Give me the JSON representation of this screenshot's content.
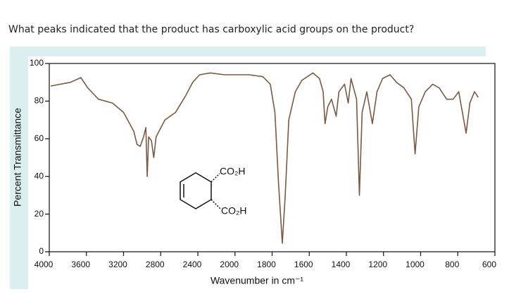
{
  "question": "What peaks indicated that the product has carboxylic acid groups on the product?",
  "chart_data": {
    "type": "line",
    "xlabel": "Wavenumber in cm⁻¹",
    "ylabel": "Percent Transmittance",
    "structure_labels": [
      "CO₂H",
      "CO₂H"
    ],
    "color": "#7a5a44",
    "xlim": [
      4000,
      600
    ],
    "xticks": [
      4000,
      3600,
      3200,
      2800,
      2400,
      2000,
      1800,
      1600,
      1400,
      1200,
      1000,
      800,
      600
    ],
    "ylim": [
      0,
      100
    ],
    "yticks": [
      0,
      20,
      40,
      60,
      80,
      100
    ],
    "x": [
      3985,
      3770,
      3660,
      3585,
      3470,
      3320,
      3200,
      3090,
      3055,
      3020,
      2985,
      2960,
      2945,
      2930,
      2900,
      2875,
      2850,
      2755,
      2640,
      2530,
      2455,
      2380,
      2265,
      2115,
      2000,
      1925,
      1850,
      1810,
      1785,
      1765,
      1745,
      1730,
      1710,
      1675,
      1640,
      1580,
      1545,
      1525,
      1515,
      1500,
      1480,
      1455,
      1440,
      1410,
      1390,
      1375,
      1345,
      1330,
      1315,
      1290,
      1260,
      1235,
      1205,
      1165,
      1130,
      1090,
      1050,
      1030,
      1010,
      975,
      935,
      900,
      860,
      825,
      795,
      775,
      755,
      735,
      710,
      690
    ],
    "values": [
      88,
      90,
      92.5,
      87,
      81,
      79,
      74,
      64,
      57,
      56,
      61,
      66,
      40,
      61,
      59,
      50,
      61,
      70,
      74,
      83,
      90,
      94,
      95,
      94,
      94,
      94,
      93,
      89,
      74,
      36,
      4.5,
      29,
      70,
      85,
      91,
      95,
      92,
      85,
      68,
      77,
      81,
      72,
      85,
      89,
      79,
      92,
      81,
      30,
      74,
      85,
      68,
      85,
      92,
      94,
      90,
      87,
      81,
      52,
      77,
      85,
      89,
      87,
      81,
      81,
      85,
      74,
      63,
      79,
      85,
      82
    ]
  }
}
